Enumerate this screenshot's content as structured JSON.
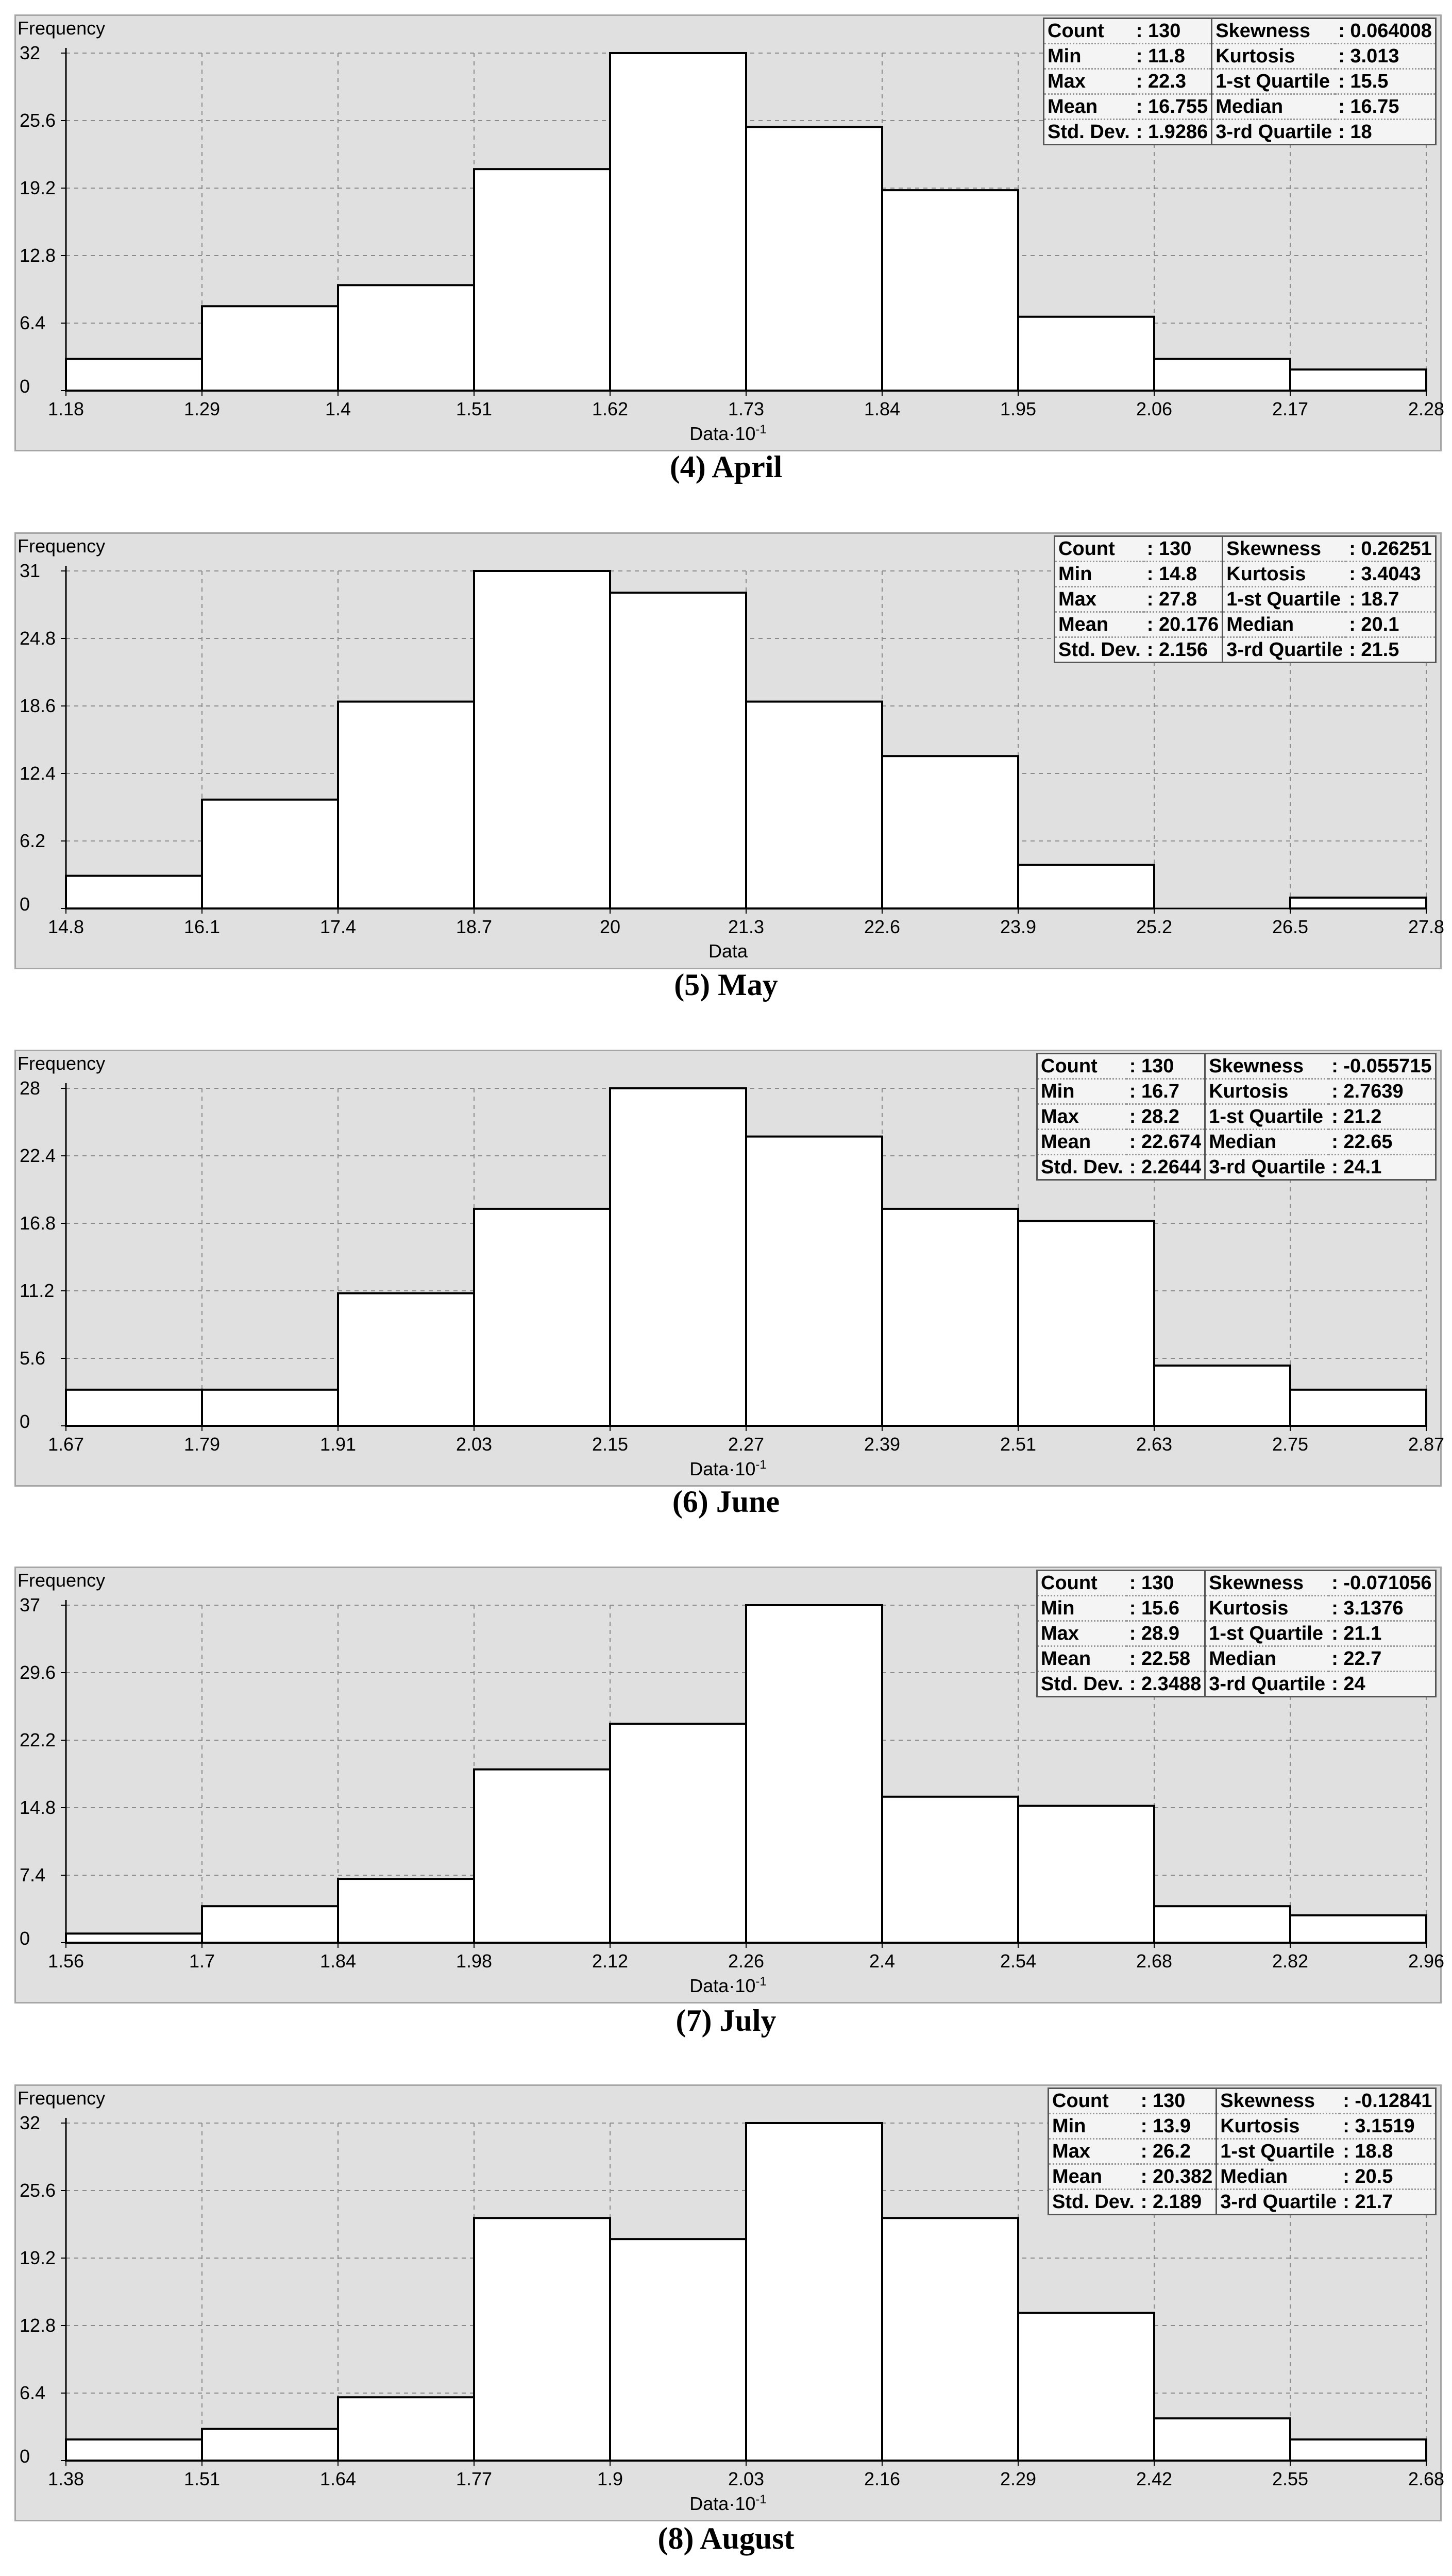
{
  "chart_data": [
    {
      "type": "bar",
      "caption": "(4) April",
      "ylabel": "Frequency",
      "xlabel": "Data·10",
      "xlabel_exp": "-1",
      "yticks": [
        "0",
        "6.4",
        "12.8",
        "19.2",
        "25.6",
        "32"
      ],
      "ylim": [
        0,
        32
      ],
      "xticks": [
        "1.18",
        "1.29",
        "1.4",
        "1.51",
        "1.62",
        "1.73",
        "1.84",
        "1.95",
        "2.06",
        "2.17",
        "2.28"
      ],
      "xlim": [
        1.18,
        2.28
      ],
      "bins": [
        {
          "start": 1.18,
          "end": 1.29,
          "value": 3
        },
        {
          "start": 1.29,
          "end": 1.4,
          "value": 8
        },
        {
          "start": 1.4,
          "end": 1.51,
          "value": 10
        },
        {
          "start": 1.51,
          "end": 1.62,
          "value": 21
        },
        {
          "start": 1.62,
          "end": 1.73,
          "value": 32
        },
        {
          "start": 1.73,
          "end": 1.84,
          "value": 25
        },
        {
          "start": 1.84,
          "end": 1.95,
          "value": 19
        },
        {
          "start": 1.95,
          "end": 2.06,
          "value": 7
        },
        {
          "start": 2.06,
          "end": 2.17,
          "value": 3
        },
        {
          "start": 2.17,
          "end": 2.28,
          "value": 2
        }
      ],
      "grid": true,
      "stats": {
        "left": [
          [
            "Count",
            ": 130"
          ],
          [
            "Min",
            ": 11.8"
          ],
          [
            "Max",
            ": 22.3"
          ],
          [
            "Mean",
            ": 16.755"
          ],
          [
            "Std. Dev.",
            ": 1.9286"
          ]
        ],
        "right": [
          [
            "Skewness",
            ": 0.064008"
          ],
          [
            "Kurtosis",
            ": 3.013"
          ],
          [
            "1-st Quartile",
            ": 15.5"
          ],
          [
            "Median",
            ": 16.75"
          ],
          [
            "3-rd Quartile",
            ": 18"
          ]
        ]
      }
    },
    {
      "type": "bar",
      "caption": "(5) May",
      "ylabel": "Frequency",
      "xlabel": "Data",
      "xlabel_exp": "",
      "yticks": [
        "0",
        "6.2",
        "12.4",
        "18.6",
        "24.8",
        "31"
      ],
      "ylim": [
        0,
        31
      ],
      "xticks": [
        "14.8",
        "16.1",
        "17.4",
        "18.7",
        "20",
        "21.3",
        "22.6",
        "23.9",
        "25.2",
        "26.5",
        "27.8"
      ],
      "xlim": [
        14.8,
        27.8
      ],
      "bins": [
        {
          "start": 14.8,
          "end": 16.1,
          "value": 3
        },
        {
          "start": 16.1,
          "end": 17.4,
          "value": 10
        },
        {
          "start": 17.4,
          "end": 18.7,
          "value": 19
        },
        {
          "start": 18.7,
          "end": 20,
          "value": 31
        },
        {
          "start": 20,
          "end": 21.3,
          "value": 29
        },
        {
          "start": 21.3,
          "end": 22.6,
          "value": 19
        },
        {
          "start": 22.6,
          "end": 23.9,
          "value": 14
        },
        {
          "start": 23.9,
          "end": 25.2,
          "value": 4
        },
        {
          "start": 25.2,
          "end": 26.5,
          "value": 0
        },
        {
          "start": 26.5,
          "end": 27.8,
          "value": 1
        }
      ],
      "grid": true,
      "stats": {
        "left": [
          [
            "Count",
            ": 130"
          ],
          [
            "Min",
            ": 14.8"
          ],
          [
            "Max",
            ": 27.8"
          ],
          [
            "Mean",
            ": 20.176"
          ],
          [
            "Std. Dev.",
            ": 2.156"
          ]
        ],
        "right": [
          [
            "Skewness",
            ": 0.26251"
          ],
          [
            "Kurtosis",
            ": 3.4043"
          ],
          [
            "1-st Quartile",
            ": 18.7"
          ],
          [
            "Median",
            ": 20.1"
          ],
          [
            "3-rd Quartile",
            ": 21.5"
          ]
        ]
      }
    },
    {
      "type": "bar",
      "caption": "(6) June",
      "ylabel": "Frequency",
      "xlabel": "Data·10",
      "xlabel_exp": "-1",
      "yticks": [
        "0",
        "5.6",
        "11.2",
        "16.8",
        "22.4",
        "28"
      ],
      "ylim": [
        0,
        28
      ],
      "xticks": [
        "1.67",
        "1.79",
        "1.91",
        "2.03",
        "2.15",
        "2.27",
        "2.39",
        "2.51",
        "2.63",
        "2.75",
        "2.87"
      ],
      "xlim": [
        1.67,
        2.87
      ],
      "bins": [
        {
          "start": 1.67,
          "end": 1.79,
          "value": 3
        },
        {
          "start": 1.79,
          "end": 1.91,
          "value": 3
        },
        {
          "start": 1.91,
          "end": 2.03,
          "value": 11
        },
        {
          "start": 2.03,
          "end": 2.15,
          "value": 18
        },
        {
          "start": 2.15,
          "end": 2.27,
          "value": 28
        },
        {
          "start": 2.27,
          "end": 2.39,
          "value": 24
        },
        {
          "start": 2.39,
          "end": 2.51,
          "value": 18
        },
        {
          "start": 2.51,
          "end": 2.63,
          "value": 17
        },
        {
          "start": 2.63,
          "end": 2.75,
          "value": 5
        },
        {
          "start": 2.75,
          "end": 2.87,
          "value": 3
        }
      ],
      "grid": true,
      "stats": {
        "left": [
          [
            "Count",
            ": 130"
          ],
          [
            "Min",
            ": 16.7"
          ],
          [
            "Max",
            ": 28.2"
          ],
          [
            "Mean",
            ": 22.674"
          ],
          [
            "Std. Dev.",
            ": 2.2644"
          ]
        ],
        "right": [
          [
            "Skewness",
            ": -0.055715"
          ],
          [
            "Kurtosis",
            ": 2.7639"
          ],
          [
            "1-st Quartile",
            ": 21.2"
          ],
          [
            "Median",
            ": 22.65"
          ],
          [
            "3-rd Quartile",
            ": 24.1"
          ]
        ]
      }
    },
    {
      "type": "bar",
      "caption": "(7) July",
      "ylabel": "Frequency",
      "xlabel": "Data·10",
      "xlabel_exp": "-1",
      "yticks": [
        "0",
        "7.4",
        "14.8",
        "22.2",
        "29.6",
        "37"
      ],
      "ylim": [
        0,
        37
      ],
      "xticks": [
        "1.56",
        "1.7",
        "1.84",
        "1.98",
        "2.12",
        "2.26",
        "2.4",
        "2.54",
        "2.68",
        "2.82",
        "2.96"
      ],
      "xlim": [
        1.56,
        2.96
      ],
      "bins": [
        {
          "start": 1.56,
          "end": 1.7,
          "value": 1
        },
        {
          "start": 1.7,
          "end": 1.84,
          "value": 4
        },
        {
          "start": 1.84,
          "end": 1.98,
          "value": 7
        },
        {
          "start": 1.98,
          "end": 2.12,
          "value": 19
        },
        {
          "start": 2.12,
          "end": 2.26,
          "value": 24
        },
        {
          "start": 2.26,
          "end": 2.4,
          "value": 37
        },
        {
          "start": 2.4,
          "end": 2.54,
          "value": 16
        },
        {
          "start": 2.54,
          "end": 2.68,
          "value": 15
        },
        {
          "start": 2.68,
          "end": 2.82,
          "value": 4
        },
        {
          "start": 2.82,
          "end": 2.96,
          "value": 3
        }
      ],
      "grid": true,
      "stats": {
        "left": [
          [
            "Count",
            ": 130"
          ],
          [
            "Min",
            ": 15.6"
          ],
          [
            "Max",
            ": 28.9"
          ],
          [
            "Mean",
            ": 22.58"
          ],
          [
            "Std. Dev.",
            ": 2.3488"
          ]
        ],
        "right": [
          [
            "Skewness",
            ": -0.071056"
          ],
          [
            "Kurtosis",
            ": 3.1376"
          ],
          [
            "1-st Quartile",
            ": 21.1"
          ],
          [
            "Median",
            ": 22.7"
          ],
          [
            "3-rd Quartile",
            ": 24"
          ]
        ]
      }
    },
    {
      "type": "bar",
      "caption": "(8) August",
      "ylabel": "Frequency",
      "xlabel": "Data·10",
      "xlabel_exp": "-1",
      "yticks": [
        "0",
        "6.4",
        "12.8",
        "19.2",
        "25.6",
        "32"
      ],
      "ylim": [
        0,
        32
      ],
      "xticks": [
        "1.38",
        "1.51",
        "1.64",
        "1.77",
        "1.9",
        "2.03",
        "2.16",
        "2.29",
        "2.42",
        "2.55",
        "2.68"
      ],
      "xlim": [
        1.38,
        2.68
      ],
      "bins": [
        {
          "start": 1.38,
          "end": 1.51,
          "value": 2
        },
        {
          "start": 1.51,
          "end": 1.64,
          "value": 3
        },
        {
          "start": 1.64,
          "end": 1.77,
          "value": 6
        },
        {
          "start": 1.77,
          "end": 1.9,
          "value": 23
        },
        {
          "start": 1.9,
          "end": 2.03,
          "value": 21
        },
        {
          "start": 2.03,
          "end": 2.16,
          "value": 32
        },
        {
          "start": 2.16,
          "end": 2.29,
          "value": 23
        },
        {
          "start": 2.29,
          "end": 2.42,
          "value": 14
        },
        {
          "start": 2.42,
          "end": 2.55,
          "value": 4
        },
        {
          "start": 2.55,
          "end": 2.68,
          "value": 2
        }
      ],
      "grid": true,
      "stats": {
        "left": [
          [
            "Count",
            ": 130"
          ],
          [
            "Min",
            ": 13.9"
          ],
          [
            "Max",
            ": 26.2"
          ],
          [
            "Mean",
            ": 20.382"
          ],
          [
            "Std. Dev.",
            ": 2.189"
          ]
        ],
        "right": [
          [
            "Skewness",
            ": -0.12841"
          ],
          [
            "Kurtosis",
            ": 3.1519"
          ],
          [
            "1-st Quartile",
            ": 18.8"
          ],
          [
            "Median",
            ": 20.5"
          ],
          [
            "3-rd Quartile",
            ": 21.7"
          ]
        ]
      }
    }
  ]
}
